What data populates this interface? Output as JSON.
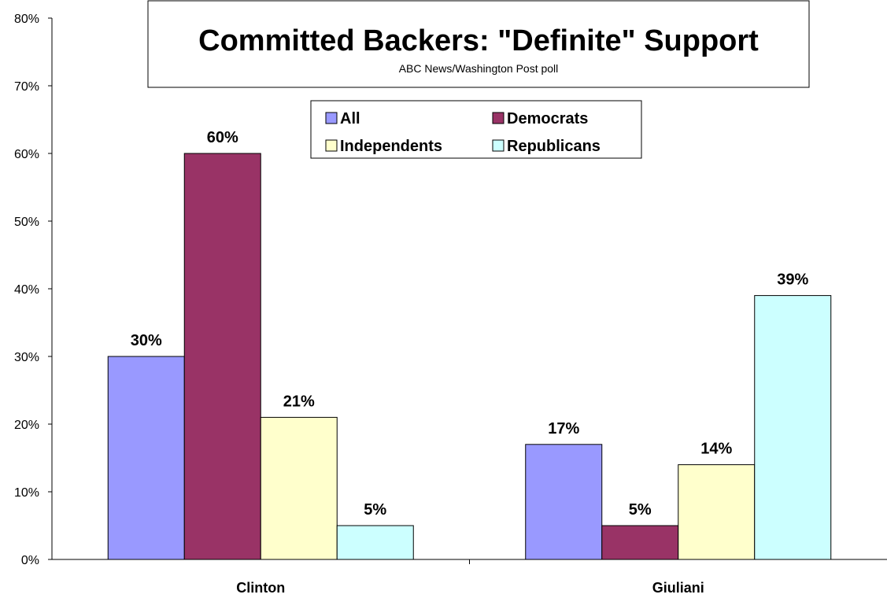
{
  "chart_data": {
    "type": "bar",
    "title": "Committed Backers: \"Definite\" Support",
    "subtitle": "ABC News/Washington Post poll",
    "categories": [
      "Clinton",
      "Giuliani"
    ],
    "series": [
      {
        "name": "All",
        "values": [
          30,
          17
        ],
        "color": "#9999ff"
      },
      {
        "name": "Democrats",
        "values": [
          60,
          5
        ],
        "color": "#993366"
      },
      {
        "name": "Independents",
        "values": [
          21,
          14
        ],
        "color": "#ffffcc"
      },
      {
        "name": "Republicans",
        "values": [
          5,
          39
        ],
        "color": "#ccffff"
      }
    ],
    "value_suffix": "%",
    "ylim": [
      0,
      80
    ],
    "yticks": [
      "0%",
      "10%",
      "20%",
      "30%",
      "40%",
      "50%",
      "60%",
      "70%",
      "80%"
    ],
    "xlabel": "",
    "ylabel": "",
    "grid": false,
    "legend_position": "top-center"
  }
}
